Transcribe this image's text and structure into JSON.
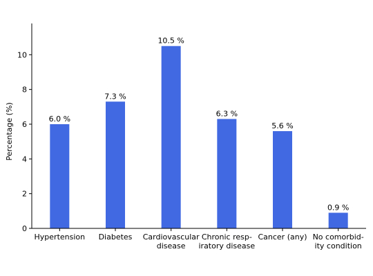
{
  "chart_data": {
    "type": "bar",
    "categories": [
      [
        "Hypertension"
      ],
      [
        "Diabetes"
      ],
      [
        "Cardiovascular",
        "disease"
      ],
      [
        "Chronic resp-",
        "iratory disease"
      ],
      [
        "Cancer (any)"
      ],
      [
        "No comorbid-",
        "ity condition"
      ]
    ],
    "values": [
      6.0,
      7.3,
      10.5,
      6.3,
      5.6,
      0.9
    ],
    "data_labels": [
      "6.0 %",
      "7.3 %",
      "10.5 %",
      "6.3 %",
      "5.6 %",
      "0.9 %"
    ],
    "ylabel": "Percentage (%)",
    "xlabel": "",
    "ylim": [
      0,
      11.8
    ],
    "yticks": [
      0,
      2,
      4,
      6,
      8,
      10
    ],
    "grid": false,
    "bar_color": "#4169e1",
    "spines": [
      "left",
      "bottom"
    ]
  }
}
